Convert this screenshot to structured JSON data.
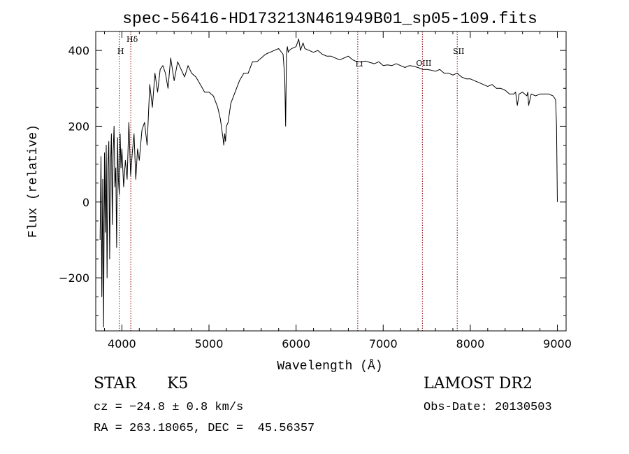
{
  "chart_data": {
    "type": "line",
    "title": "spec-56416-HD173213N461949B01_sp05-109.fits",
    "xlabel": "Wavelength (Å)",
    "ylabel": "Flux (relative)",
    "xlim": [
      3700,
      9100
    ],
    "ylim": [
      -340,
      450
    ],
    "x_ticks": [
      4000,
      5000,
      6000,
      7000,
      8000,
      9000
    ],
    "y_ticks": [
      -200,
      0,
      200,
      400
    ],
    "grid": false,
    "legend": "none",
    "series": [
      {
        "x": [
          3750,
          3760,
          3770,
          3780,
          3790,
          3800,
          3810,
          3820,
          3830,
          3840,
          3850,
          3860,
          3870,
          3880,
          3890,
          3900,
          3910,
          3920,
          3930,
          3940,
          3950,
          3960,
          3970,
          3980,
          3990,
          4000,
          4020,
          4040,
          4060,
          4080,
          4100,
          4120,
          4140,
          4160,
          4180,
          4200,
          4230,
          4260,
          4290,
          4320,
          4350,
          4380,
          4410,
          4440,
          4470,
          4500,
          4530,
          4560,
          4600,
          4640,
          4680,
          4720,
          4760,
          4800,
          4850,
          4900,
          4950,
          5000,
          5050,
          5100,
          5130,
          5160,
          5170,
          5180,
          5190,
          5200,
          5220,
          5250,
          5300,
          5350,
          5400,
          5450,
          5500,
          5550,
          5600,
          5650,
          5700,
          5750,
          5800,
          5850,
          5870,
          5880,
          5890,
          5900,
          5910,
          5920,
          5950,
          6000,
          6030,
          6050,
          6080,
          6100,
          6150,
          6200,
          6250,
          6300,
          6350,
          6400,
          6450,
          6500,
          6550,
          6600,
          6650,
          6700,
          6750,
          6800,
          6850,
          6900,
          6950,
          7000,
          7050,
          7100,
          7150,
          7200,
          7250,
          7300,
          7350,
          7400,
          7450,
          7500,
          7550,
          7600,
          7650,
          7700,
          7750,
          7800,
          7850,
          7900,
          7950,
          8000,
          8050,
          8100,
          8150,
          8200,
          8250,
          8300,
          8350,
          8400,
          8450,
          8500,
          8520,
          8540,
          8560,
          8600,
          8650,
          8660,
          8670,
          8700,
          8750,
          8800,
          8850,
          8900,
          8950,
          8980,
          8990,
          9000
        ],
        "y": [
          -100,
          120,
          -250,
          60,
          -330,
          130,
          -80,
          150,
          -200,
          90,
          160,
          -150,
          100,
          180,
          -60,
          130,
          200,
          40,
          90,
          -120,
          170,
          60,
          20,
          180,
          90,
          140,
          40,
          110,
          60,
          210,
          70,
          130,
          180,
          60,
          140,
          110,
          190,
          210,
          150,
          310,
          250,
          340,
          290,
          350,
          360,
          340,
          300,
          380,
          320,
          370,
          350,
          330,
          360,
          340,
          330,
          310,
          290,
          290,
          280,
          250,
          220,
          170,
          150,
          180,
          160,
          200,
          210,
          260,
          290,
          320,
          340,
          340,
          370,
          370,
          380,
          390,
          395,
          400,
          405,
          390,
          330,
          200,
          390,
          410,
          395,
          400,
          405,
          410,
          430,
          400,
          420,
          405,
          400,
          395,
          400,
          390,
          385,
          385,
          380,
          375,
          380,
          385,
          375,
          370,
          370,
          372,
          368,
          365,
          370,
          360,
          362,
          360,
          365,
          360,
          355,
          360,
          358,
          355,
          350,
          350,
          348,
          345,
          350,
          340,
          340,
          335,
          340,
          330,
          325,
          325,
          320,
          315,
          310,
          305,
          310,
          300,
          300,
          295,
          285,
          285,
          290,
          255,
          285,
          290,
          280,
          290,
          255,
          285,
          280,
          285,
          285,
          285,
          280,
          270,
          200,
          0
        ]
      }
    ],
    "spectral_lines": [
      {
        "label": "H",
        "x": 3970
      },
      {
        "label": "Hδ",
        "x": 4102
      },
      {
        "label": "Li",
        "x": 6708
      },
      {
        "label": "OIII",
        "x": 7450
      },
      {
        "label": "SII",
        "x": 7850
      }
    ],
    "annotations": {
      "object": "STAR",
      "subclass": "K5",
      "survey": "LAMOST DR2",
      "velocity": "cz = −24.8 ± 0.8 km/s",
      "obs_date": "Obs-Date: 20130503",
      "coords": "RA = 263.18065, DEC =  45.56357"
    },
    "colors": {
      "line": "#000000",
      "marker_line": "#8b0000",
      "axes": "#000000"
    }
  }
}
